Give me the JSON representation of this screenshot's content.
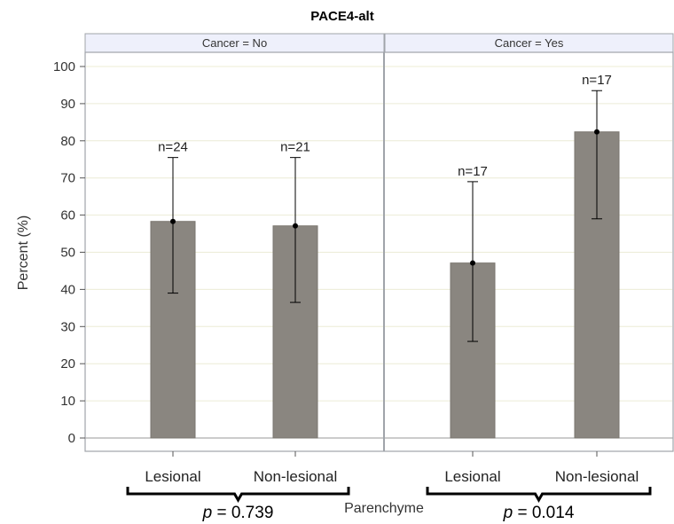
{
  "chart_data": {
    "type": "bar",
    "title": "PACE4-alt",
    "ylabel": "Percent (%)",
    "xlabel": "Parenchyme",
    "ylim": [
      0,
      100
    ],
    "yticks": [
      0,
      10,
      20,
      30,
      40,
      50,
      60,
      70,
      80,
      90,
      100
    ],
    "grid": true,
    "panels": [
      {
        "label": "Cancer = No",
        "categories": [
          "Lesional",
          "Non-lesional"
        ],
        "values": [
          58.3,
          57.1
        ],
        "error_low": [
          39,
          36.5
        ],
        "error_high": [
          75.5,
          75.5
        ],
        "n_labels": [
          "n=24",
          "n=21"
        ],
        "p_italic": "p",
        "p_text": " = 0.739"
      },
      {
        "label": "Cancer = Yes",
        "categories": [
          "Lesional",
          "Non-lesional"
        ],
        "values": [
          47.1,
          82.4
        ],
        "error_low": [
          26,
          59
        ],
        "error_high": [
          69,
          93.5
        ],
        "n_labels": [
          "n=17",
          "n=17"
        ],
        "p_italic": "p",
        "p_text": " = 0.014"
      }
    ],
    "colors": {
      "bar": "#8a8680",
      "bar_edge": "#7a766f",
      "strip_bg": "#eef0fb",
      "grid": "#ececd6",
      "frame": "#a0a4aa"
    }
  }
}
